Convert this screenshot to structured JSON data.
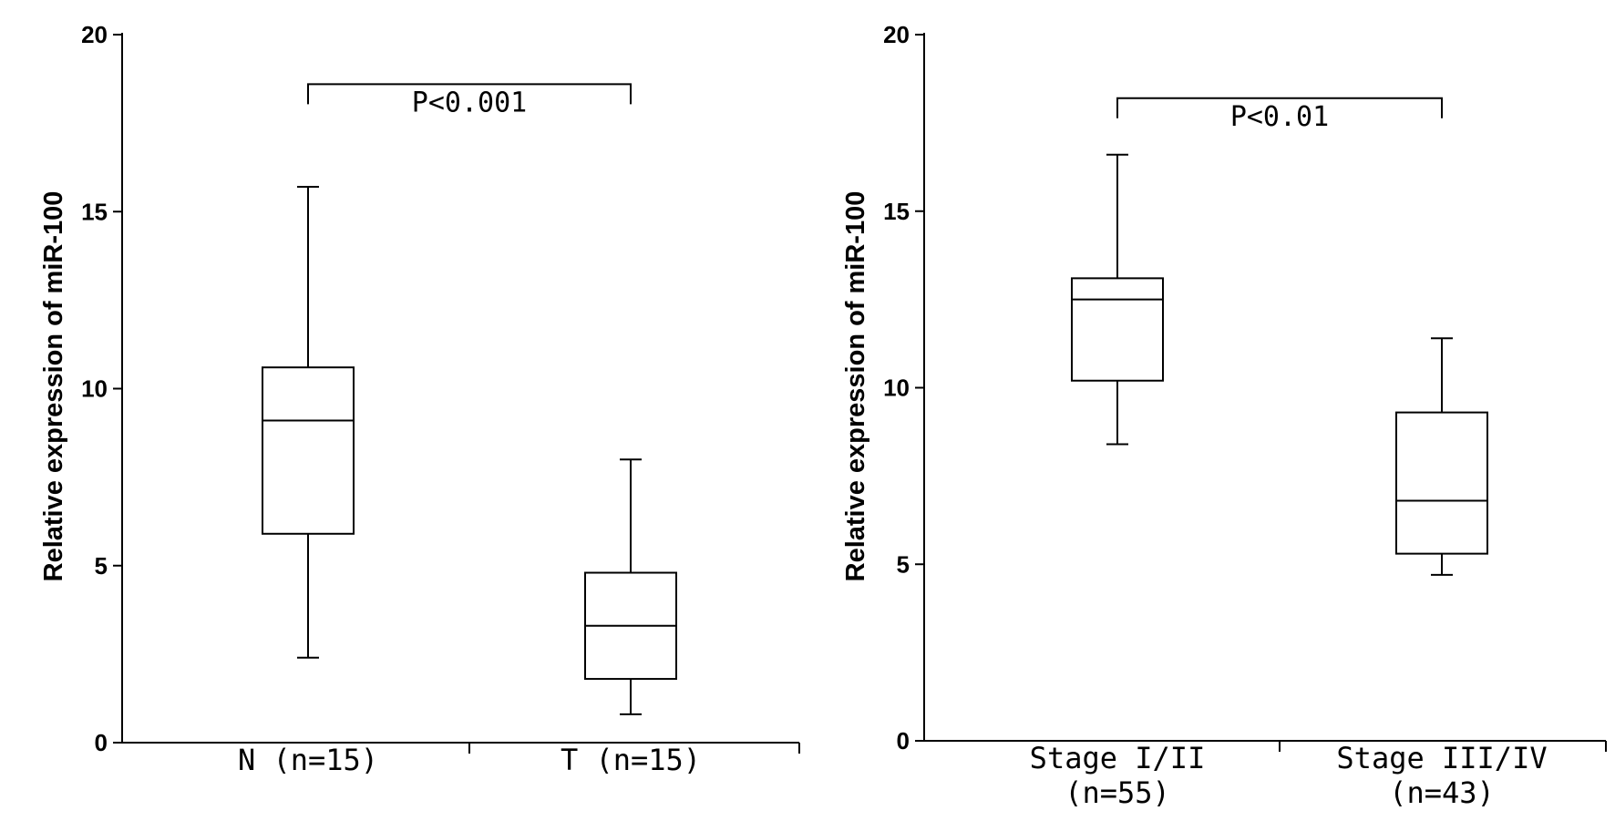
{
  "chart_data": [
    {
      "type": "box",
      "title": "",
      "ylabel": "Relative expression of miR-100",
      "xlabel": "",
      "ylim": [
        0,
        20
      ],
      "yticks": [
        "0",
        "5",
        "10",
        "15",
        "20"
      ],
      "grid": false,
      "categories": [
        {
          "label_lines": [
            "N (n=15)"
          ],
          "whisker_low": 2.4,
          "q1": 5.9,
          "median": 9.1,
          "q3": 10.6,
          "whisker_high": 15.7
        },
        {
          "label_lines": [
            "T (n=15)"
          ],
          "whisker_low": 0.8,
          "q1": 1.8,
          "median": 3.3,
          "q3": 4.8,
          "whisker_high": 8.0
        }
      ],
      "significance": {
        "text": "P<0.001",
        "from": 0,
        "to": 1,
        "y": 18.6
      }
    },
    {
      "type": "box",
      "title": "",
      "ylabel": "Relative expression of miR-100",
      "xlabel": "",
      "ylim": [
        0,
        20
      ],
      "yticks": [
        "0",
        "5",
        "10",
        "15",
        "20"
      ],
      "grid": false,
      "categories": [
        {
          "label_lines": [
            "Stage I/II",
            "(n=55)"
          ],
          "whisker_low": 8.4,
          "q1": 10.2,
          "median": 12.5,
          "q3": 13.1,
          "whisker_high": 16.6
        },
        {
          "label_lines": [
            "Stage III/IV",
            "(n=43)"
          ],
          "whisker_low": 4.7,
          "q1": 5.3,
          "median": 6.8,
          "q3": 9.3,
          "whisker_high": 11.4
        }
      ],
      "significance": {
        "text": "P<0.01",
        "from": 0,
        "to": 1,
        "y": 18.2
      }
    }
  ]
}
